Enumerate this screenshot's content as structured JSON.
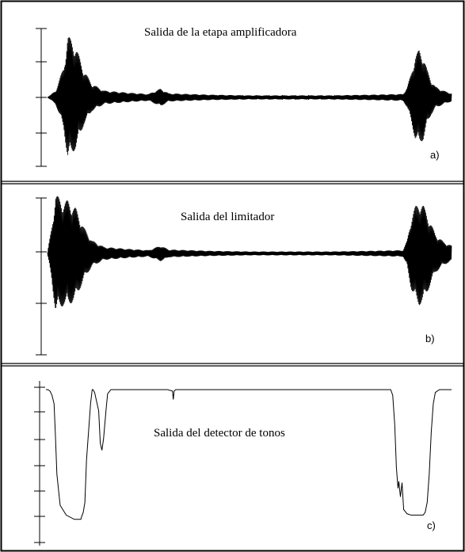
{
  "chart_data": [
    {
      "type": "line",
      "title": "Salida de la etapa amplificadora",
      "panel_label": "a)",
      "series": [
        {
          "signal": "oscillating",
          "x": [
            0,
            2,
            4,
            5,
            7,
            9,
            11,
            14,
            20,
            25,
            28,
            30,
            35,
            40,
            50,
            60,
            70,
            80,
            88,
            89,
            90,
            91,
            92,
            93,
            94,
            95,
            96,
            98,
            100
          ],
          "y": [
            0,
            0.1,
            0.45,
            0.92,
            0.75,
            0.4,
            0.2,
            0.1,
            0.07,
            0.05,
            0.13,
            0.06,
            0.05,
            0.04,
            0.03,
            0.03,
            0.03,
            0.04,
            0.05,
            0.15,
            0.35,
            0.62,
            0.7,
            0.62,
            0.4,
            0.25,
            0.16,
            0.1,
            0.06
          ]
        }
      ]
    },
    {
      "type": "line",
      "title": "Salida del limitador",
      "panel_label": "b)",
      "series": [
        {
          "signal": "oscillating",
          "x": [
            0,
            1,
            2,
            3,
            4,
            5,
            7,
            9,
            11,
            14,
            20,
            25,
            28,
            30,
            35,
            40,
            50,
            60,
            70,
            80,
            88,
            89,
            90,
            91,
            92,
            93,
            94,
            95,
            96,
            98,
            100
          ],
          "y": [
            0.02,
            0.4,
            0.92,
            0.85,
            0.8,
            0.82,
            0.7,
            0.4,
            0.2,
            0.1,
            0.07,
            0.05,
            0.12,
            0.06,
            0.05,
            0.04,
            0.03,
            0.03,
            0.03,
            0.04,
            0.05,
            0.2,
            0.55,
            0.72,
            0.8,
            0.75,
            0.6,
            0.45,
            0.3,
            0.18,
            0.12
          ]
        }
      ]
    },
    {
      "type": "line",
      "title": "Salida del  detector de tonos",
      "panel_label": "c)",
      "series": [
        {
          "signal": "smooth",
          "x": [
            0,
            0.5,
            1,
            1.5,
            2,
            2.3,
            2.7,
            3.5,
            5,
            7,
            8,
            8.6,
            8.8,
            9.2,
            9.6,
            10,
            11,
            11.4,
            11.6,
            12,
            13,
            13.4,
            13.8,
            14.2,
            14.8,
            15.2,
            16,
            20,
            30,
            31.2,
            31.4,
            31.6,
            32,
            35,
            50,
            65,
            70,
            80,
            85,
            85.5,
            86,
            86.4,
            86.8,
            87,
            87.4,
            87.8,
            88.2,
            89,
            90,
            92,
            93,
            93.5,
            94,
            94.5,
            95,
            95.5,
            96,
            97,
            100
          ],
          "y": [
            1,
            1,
            0.99,
            0.96,
            0.9,
            0.7,
            0.4,
            0.18,
            0.11,
            0.08,
            0.08,
            0.08,
            0.1,
            0.13,
            0.2,
            0.5,
            0.9,
            1,
            1,
            0.98,
            0.85,
            0.62,
            0.57,
            0.65,
            0.85,
            0.97,
            1,
            1,
            1,
            0.99,
            0.93,
            0.99,
            1,
            1,
            1,
            1,
            1,
            1,
            1,
            0.96,
            0.75,
            0.45,
            0.3,
            0.35,
            0.24,
            0.34,
            0.15,
            0.12,
            0.11,
            0.11,
            0.11,
            0.13,
            0.2,
            0.4,
            0.7,
            0.9,
            0.98,
            1,
            1
          ]
        }
      ]
    }
  ]
}
